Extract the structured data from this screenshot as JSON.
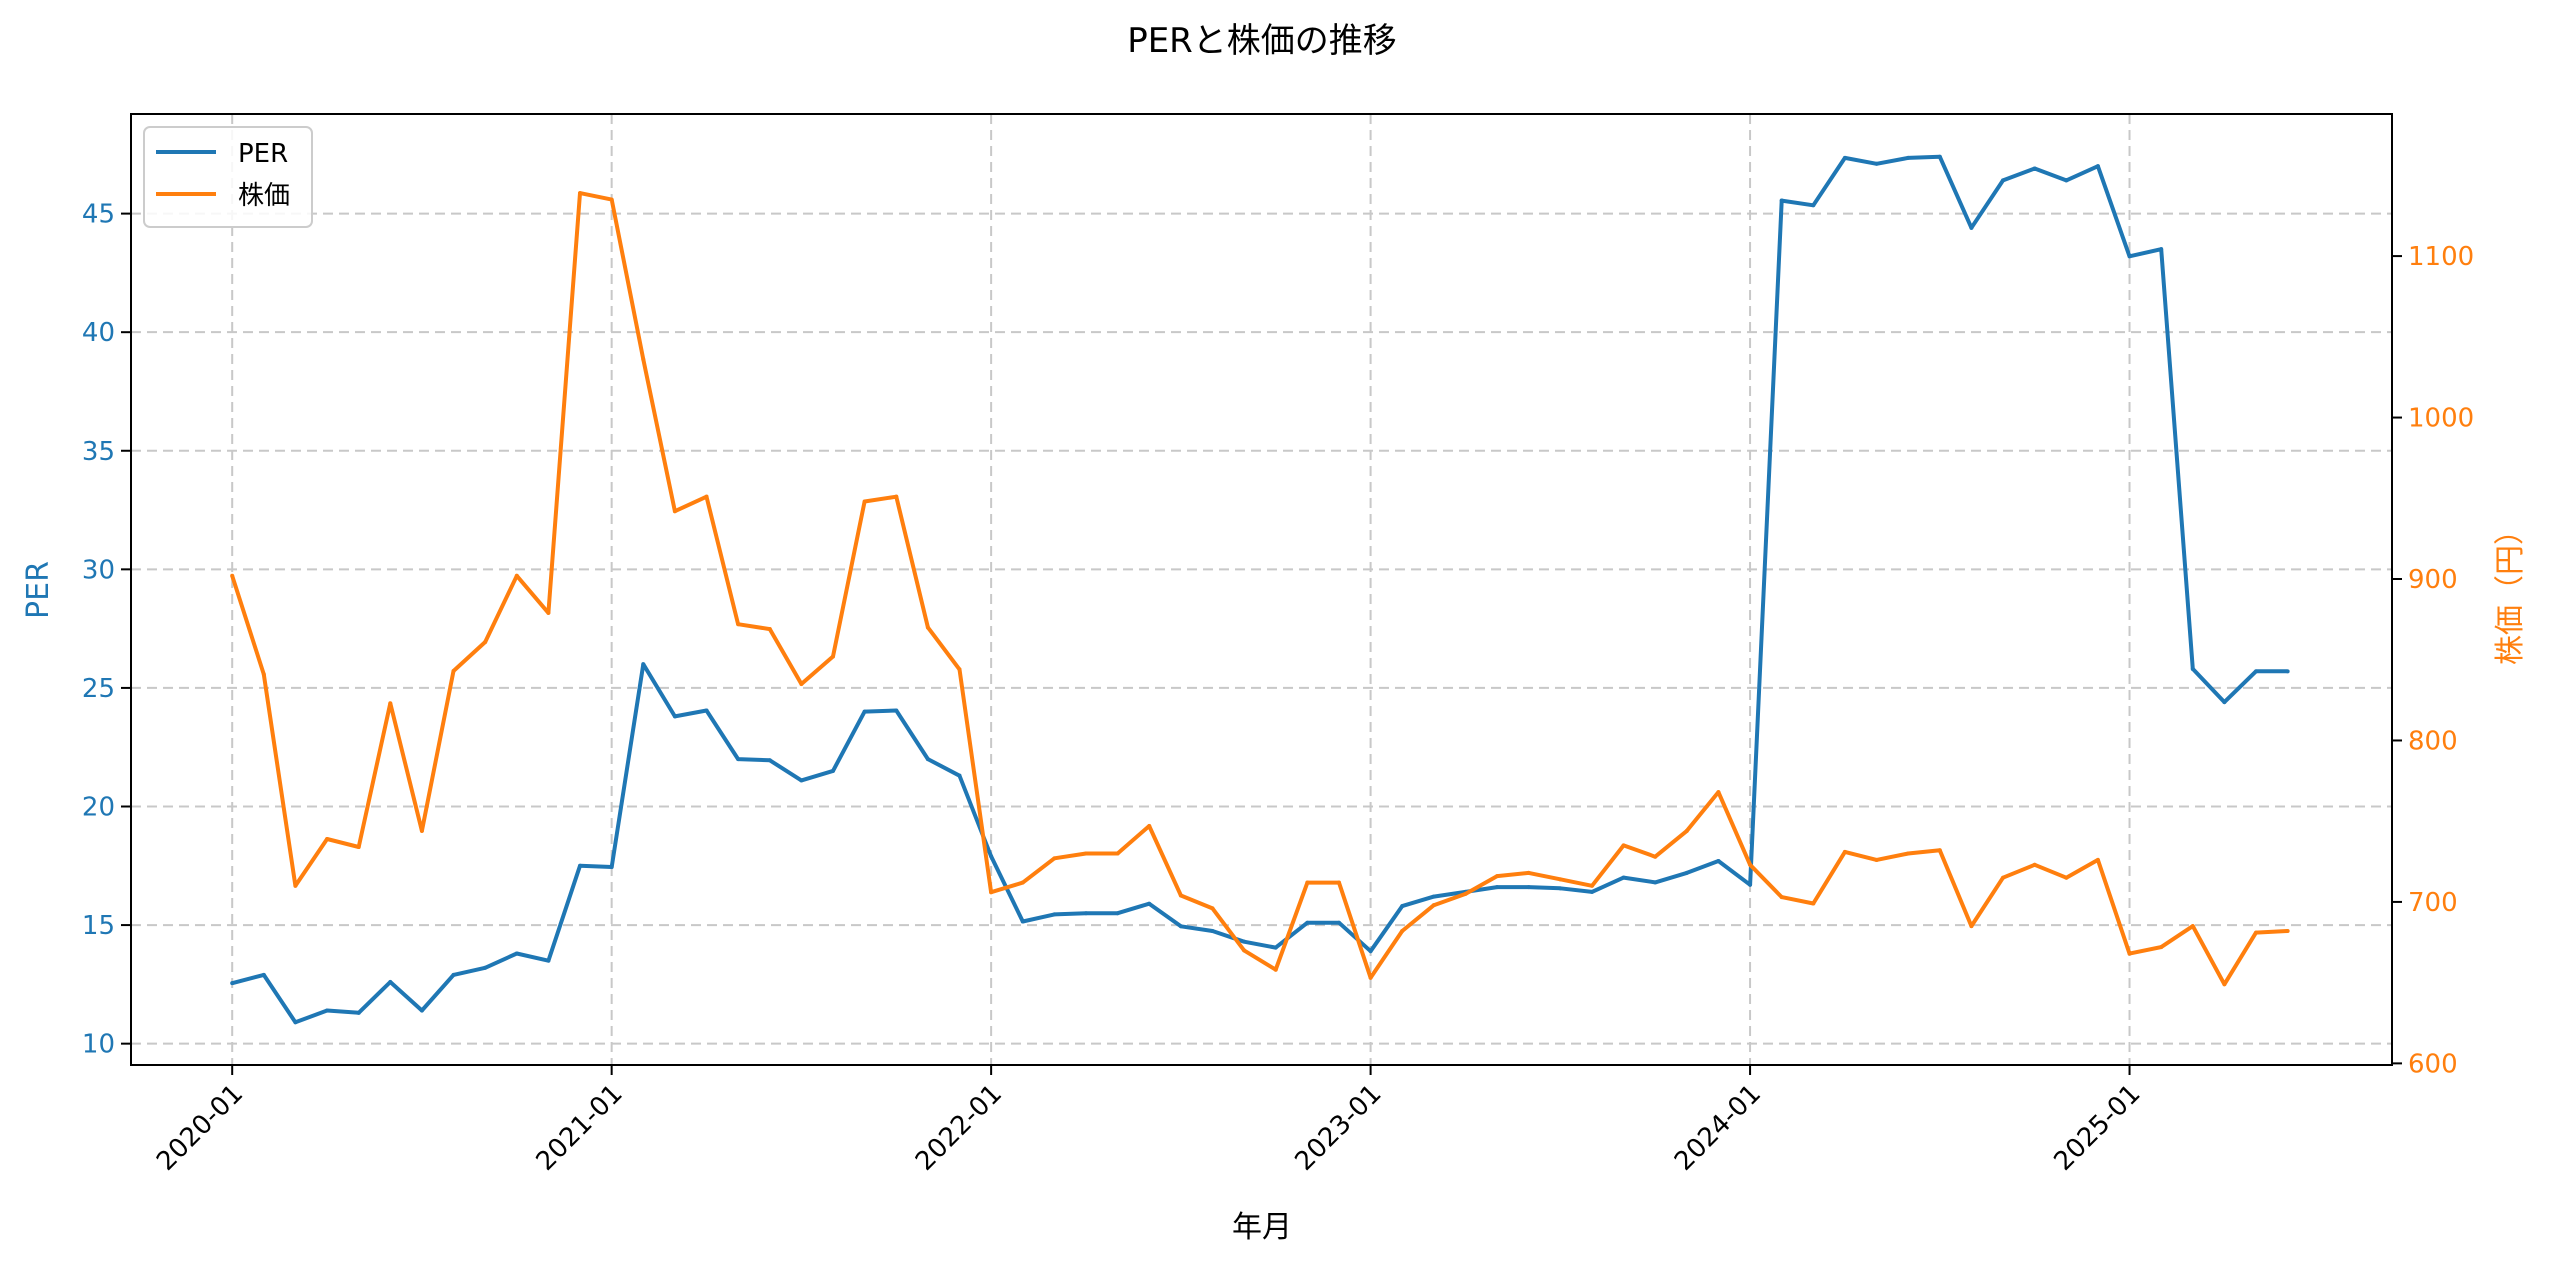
{
  "chart_data": {
    "type": "line",
    "title": "PERと株価の推移",
    "xlabel": "年月",
    "ylabel": "PER",
    "y2label": "株価（円）",
    "x_start": "2020-01",
    "x_ticks": [
      "2020-01",
      "2021-01",
      "2022-01",
      "2023-01",
      "2024-01",
      "2025-01"
    ],
    "x_tick_index": [
      0,
      12,
      24,
      36,
      48,
      60
    ],
    "xlim_index": [
      -3.2,
      68.3
    ],
    "ylim": [
      9.1,
      49.2
    ],
    "y_ticks": [
      10,
      15,
      20,
      25,
      30,
      35,
      40,
      45
    ],
    "y2lim": [
      599,
      1188
    ],
    "y2_ticks": [
      600,
      700,
      800,
      900,
      1000,
      1100
    ],
    "grid": true,
    "legend": "top-left",
    "colors": {
      "per": "#1f77b4",
      "price": "#ff7f0e"
    },
    "series": [
      {
        "name": "PER",
        "axis": "left",
        "values": [
          12.55,
          12.9,
          10.9,
          11.4,
          11.3,
          12.6,
          11.4,
          12.9,
          13.2,
          13.8,
          13.5,
          17.5,
          17.45,
          26.0,
          23.8,
          24.05,
          22.0,
          21.95,
          21.1,
          21.5,
          24.0,
          24.05,
          22.0,
          21.3,
          17.9,
          15.15,
          15.45,
          15.5,
          15.5,
          15.9,
          14.95,
          14.75,
          14.3,
          14.05,
          15.1,
          15.1,
          13.9,
          15.8,
          16.2,
          16.4,
          16.6,
          16.6,
          16.55,
          16.4,
          17.0,
          16.8,
          17.2,
          17.7,
          16.7,
          45.55,
          45.35,
          47.35,
          47.1,
          47.35,
          47.4,
          44.4,
          46.4,
          46.9,
          46.4,
          47.0,
          43.2,
          43.5,
          25.8,
          24.4,
          25.7,
          25.7
        ]
      },
      {
        "name": "株価",
        "axis": "right",
        "values": [
          902,
          841,
          710,
          739,
          734,
          823,
          744,
          843,
          861,
          902,
          879,
          1139,
          1135,
          1036,
          942,
          951,
          872,
          869,
          835,
          852,
          948,
          951,
          870,
          844,
          706,
          712,
          727,
          730,
          730,
          747,
          704,
          696,
          670,
          658,
          712,
          712,
          653,
          682,
          698,
          705,
          716,
          718,
          714,
          710,
          735,
          728,
          744,
          768,
          723,
          703,
          699,
          731,
          726,
          730,
          732,
          685,
          715,
          723,
          715,
          726,
          668,
          672,
          685,
          649,
          681,
          682
        ]
      }
    ]
  }
}
